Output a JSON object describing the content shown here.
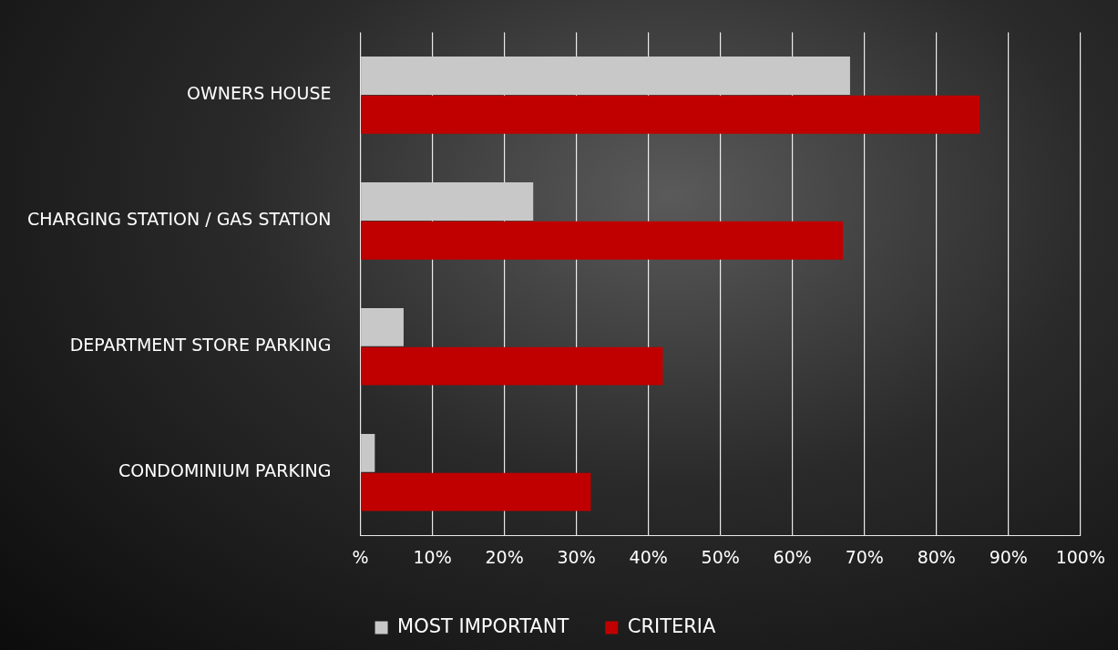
{
  "chart_data": {
    "type": "bar",
    "orientation": "horizontal",
    "categories": [
      "OWNERS HOUSE",
      "CHARGING STATION / GAS STATION",
      "DEPARTMENT STORE PARKING",
      "CONDOMINIUM PARKING"
    ],
    "series": [
      {
        "name": "MOST IMPORTANT",
        "color": "#c8c8c8",
        "values": [
          68,
          24,
          6,
          2
        ]
      },
      {
        "name": "CRITERIA",
        "color": "#c00000",
        "values": [
          86,
          67,
          42,
          32
        ]
      }
    ],
    "xlim": [
      0,
      100
    ],
    "xticks": [
      {
        "value": 0,
        "label": "%"
      },
      {
        "value": 10,
        "label": "10%"
      },
      {
        "value": 20,
        "label": "20%"
      },
      {
        "value": 30,
        "label": "30%"
      },
      {
        "value": 40,
        "label": "40%"
      },
      {
        "value": 50,
        "label": "50%"
      },
      {
        "value": 60,
        "label": "60%"
      },
      {
        "value": 70,
        "label": "70%"
      },
      {
        "value": 80,
        "label": "80%"
      },
      {
        "value": 90,
        "label": "90%"
      },
      {
        "value": 100,
        "label": "100%"
      }
    ],
    "grid": true,
    "legend": "bottom"
  }
}
